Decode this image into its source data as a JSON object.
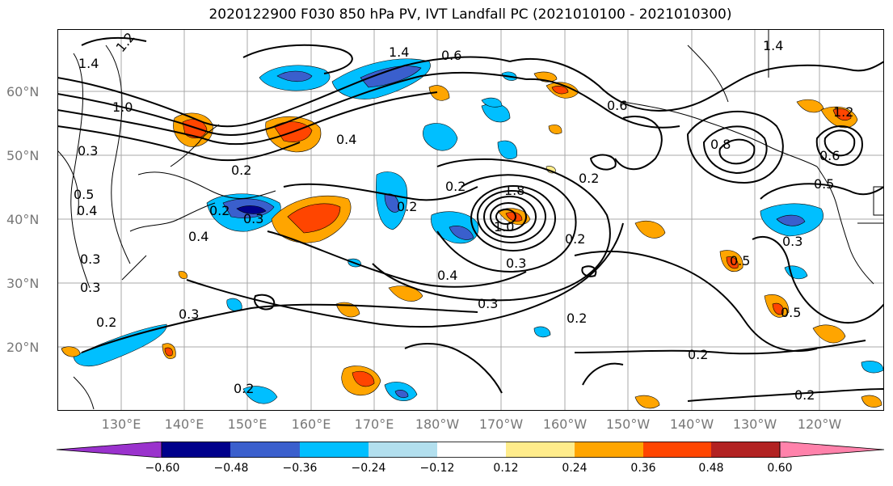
{
  "title": "2020122900 F030 850 hPa PV, IVT Landfall PC (2021010100 - 2021010300)",
  "lat_labels": [
    "60°N",
    "50°N",
    "40°N",
    "30°N",
    "20°N"
  ],
  "lon_labels": [
    "130°E",
    "140°E",
    "150°E",
    "160°E",
    "170°E",
    "180°W",
    "170°W",
    "160°W",
    "150°W",
    "140°W",
    "130°W",
    "120°W"
  ],
  "colorbar": {
    "ticks": [
      "−0.60",
      "−0.48",
      "−0.36",
      "−0.24",
      "−0.12",
      "0.12",
      "0.24",
      "0.36",
      "0.48",
      "0.60"
    ],
    "colors": [
      "#9a32cd",
      "#00008b",
      "#3a5fcd",
      "#00bfff",
      "#b2dfee",
      "#ffffff",
      "#ffec8b",
      "#ffa500",
      "#ff4500",
      "#b22222",
      "#ff82ab"
    ]
  },
  "contour_labels": [
    "1.2",
    "1.4",
    "1.4",
    "1.4",
    "1.0",
    "0.4",
    "0.2",
    "0.3",
    "0.5",
    "0.2",
    "0.3",
    "0.4",
    "0.2",
    "0.3",
    "0.2",
    "0.2",
    "0.2",
    "0.2",
    "0.5",
    "0.6",
    "0.8",
    "0.6",
    "0.5",
    "0.5",
    "0.3",
    "0.2",
    "0.2",
    "0.4",
    "0.3",
    "0.2",
    "0.3",
    "1.0",
    "0.3",
    "0.4",
    "0.3",
    "0.2",
    "1.8",
    "0.6",
    "1.2"
  ]
}
